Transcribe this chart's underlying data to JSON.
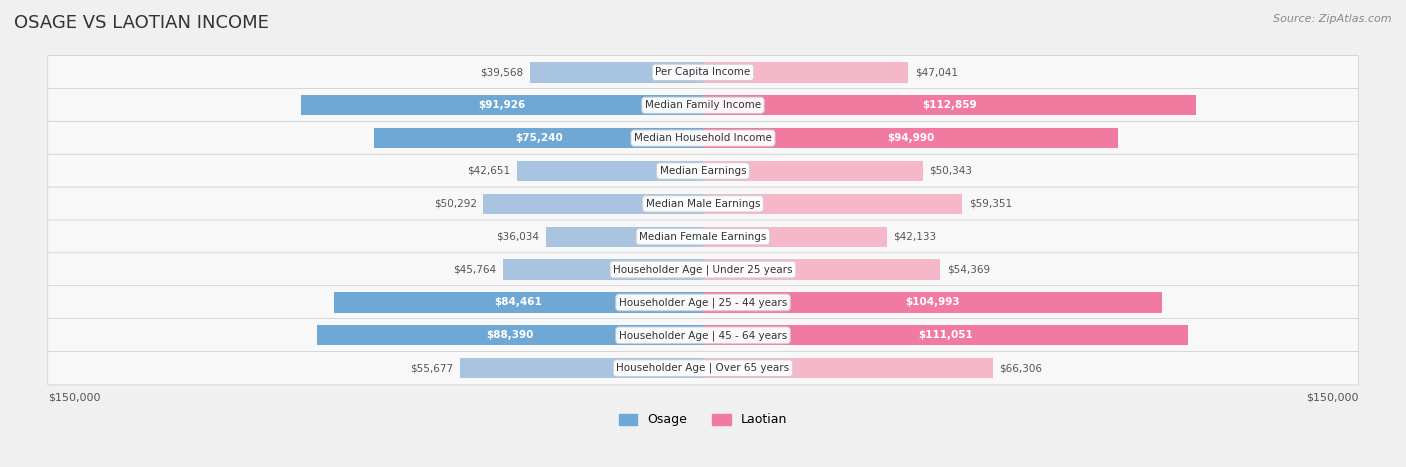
{
  "title": "OSAGE VS LAOTIAN INCOME",
  "source": "Source: ZipAtlas.com",
  "categories": [
    "Per Capita Income",
    "Median Family Income",
    "Median Household Income",
    "Median Earnings",
    "Median Male Earnings",
    "Median Female Earnings",
    "Householder Age | Under 25 years",
    "Householder Age | 25 - 44 years",
    "Householder Age | 45 - 64 years",
    "Householder Age | Over 65 years"
  ],
  "osage_values": [
    39568,
    91926,
    75240,
    42651,
    50292,
    36034,
    45764,
    84461,
    88390,
    55677
  ],
  "laotian_values": [
    47041,
    112859,
    94990,
    50343,
    59351,
    42133,
    54369,
    104993,
    111051,
    66306
  ],
  "osage_labels": [
    "$39,568",
    "$91,926",
    "$75,240",
    "$42,651",
    "$50,292",
    "$36,034",
    "$45,764",
    "$84,461",
    "$88,390",
    "$55,677"
  ],
  "laotian_labels": [
    "$47,041",
    "$112,859",
    "$94,990",
    "$50,343",
    "$59,351",
    "$42,133",
    "$54,369",
    "$104,993",
    "$111,051",
    "$66,306"
  ],
  "osage_color_normal": "#a8c4e0",
  "osage_color_highlight": "#6fa8d4",
  "laotian_color_normal": "#f4b8c8",
  "laotian_color_highlight": "#f07aa0",
  "osage_highlight": [
    1,
    2,
    7,
    8
  ],
  "laotian_highlight": [
    1,
    2,
    7,
    8
  ],
  "max_value": 150000,
  "bg_color": "#f0f0f0",
  "row_bg": "#f8f8f8",
  "label_bg": "#ffffff",
  "axis_label_left": "$150,000",
  "axis_label_right": "$150,000"
}
